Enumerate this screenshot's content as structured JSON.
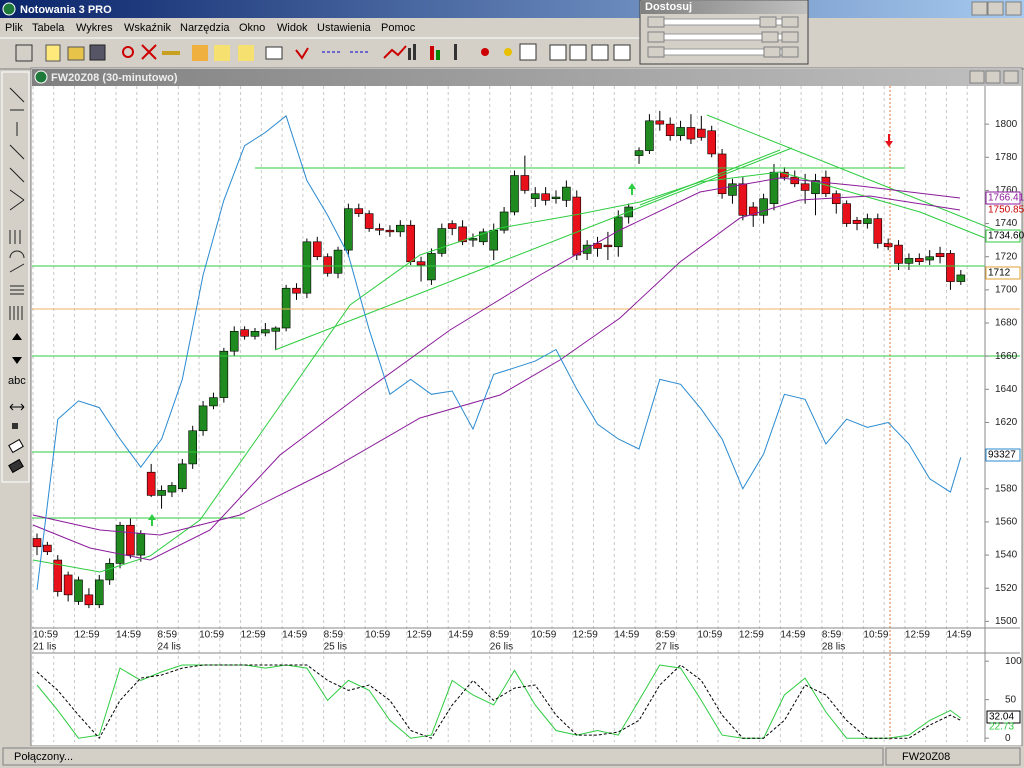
{
  "app_title": "Notowania 3 PRO",
  "menu": [
    "Plik",
    "Tabela",
    "Wykres",
    "Wskaźnik",
    "Narzędzia",
    "Okno",
    "Widok",
    "Ustawienia",
    "Pomoc"
  ],
  "panel": {
    "title": "Dostosuj"
  },
  "tool_label": "abc",
  "window": {
    "title": "FW20Z08 (30-minutowo)"
  },
  "chart": {
    "type": "candlestick",
    "up_color": "#1f8a1f",
    "down_color": "#e8101a",
    "open": [
      1550,
      1546,
      1537,
      1528,
      1512,
      1516,
      1510,
      1525,
      1535,
      1558,
      1540,
      1590,
      1576,
      1578,
      1580,
      1595,
      1615,
      1630,
      1635,
      1663,
      1676,
      1672,
      1674,
      1675,
      1677,
      1701,
      1698,
      1729,
      1720,
      1710,
      1724,
      1749,
      1746,
      1737,
      1736,
      1735,
      1739,
      1717,
      1706,
      1722,
      1740,
      1738,
      1730,
      1729,
      1724,
      1736,
      1747,
      1769,
      1755,
      1758,
      1755,
      1754,
      1756,
      1722,
      1728,
      1727,
      1726,
      1744,
      1781,
      1784,
      1802,
      1800,
      1793,
      1798,
      1797,
      1796,
      1782,
      1757,
      1764,
      1750,
      1745,
      1752,
      1771,
      1768,
      1764,
      1758,
      1768,
      1758,
      1752,
      1742,
      1740,
      1743,
      1728,
      1727,
      1716,
      1719,
      1718,
      1722,
      1722,
      1705
    ],
    "high": [
      1553,
      1548,
      1540,
      1530,
      1527,
      1520,
      1528,
      1538,
      1560,
      1562,
      1555,
      1595,
      1582,
      1584,
      1598,
      1618,
      1633,
      1638,
      1665,
      1678,
      1678,
      1677,
      1680,
      1678,
      1703,
      1704,
      1731,
      1732,
      1722,
      1726,
      1752,
      1752,
      1748,
      1740,
      1739,
      1742,
      1742,
      1720,
      1725,
      1740,
      1742,
      1742,
      1734,
      1737,
      1740,
      1750,
      1772,
      1781,
      1762,
      1762,
      1760,
      1766,
      1760,
      1730,
      1732,
      1735,
      1748,
      1752,
      1786,
      1806,
      1808,
      1804,
      1802,
      1806,
      1805,
      1799,
      1785,
      1767,
      1768,
      1753,
      1758,
      1776,
      1774,
      1772,
      1770,
      1770,
      1772,
      1760,
      1754,
      1744,
      1746,
      1746,
      1731,
      1730,
      1722,
      1722,
      1724,
      1726,
      1724,
      1712
    ],
    "low": [
      1540,
      1540,
      1515,
      1512,
      1510,
      1508,
      1508,
      1522,
      1532,
      1538,
      1536,
      1575,
      1568,
      1575,
      1578,
      1592,
      1612,
      1628,
      1632,
      1660,
      1670,
      1670,
      1672,
      1664,
      1675,
      1694,
      1695,
      1718,
      1708,
      1707,
      1720,
      1744,
      1735,
      1733,
      1732,
      1732,
      1715,
      1705,
      1703,
      1720,
      1733,
      1727,
      1726,
      1727,
      1718,
      1734,
      1745,
      1758,
      1750,
      1751,
      1752,
      1750,
      1718,
      1718,
      1720,
      1718,
      1720,
      1740,
      1776,
      1782,
      1796,
      1790,
      1790,
      1788,
      1790,
      1780,
      1755,
      1752,
      1742,
      1738,
      1740,
      1748,
      1766,
      1762,
      1752,
      1745,
      1756,
      1746,
      1738,
      1736,
      1737,
      1725,
      1724,
      1712,
      1712,
      1715,
      1715,
      1716,
      1700,
      1703
    ],
    "close": [
      1545,
      1542,
      1518,
      1516,
      1525,
      1510,
      1525,
      1535,
      1558,
      1540,
      1553,
      1576,
      1579,
      1582,
      1595,
      1615,
      1630,
      1635,
      1663,
      1675,
      1672,
      1675,
      1676,
      1677,
      1701,
      1698,
      1729,
      1720,
      1710,
      1724,
      1749,
      1746,
      1737,
      1736,
      1735,
      1739,
      1717,
      1715,
      1722,
      1737,
      1737,
      1729,
      1731,
      1735,
      1736,
      1747,
      1769,
      1760,
      1758,
      1754,
      1756,
      1762,
      1721,
      1727,
      1725,
      1726,
      1744,
      1750,
      1784,
      1802,
      1800,
      1793,
      1798,
      1791,
      1792,
      1782,
      1758,
      1764,
      1745,
      1745,
      1755,
      1771,
      1768,
      1764,
      1760,
      1766,
      1758,
      1752,
      1740,
      1740,
      1743,
      1728,
      1726,
      1716,
      1719,
      1717,
      1720,
      1720,
      1705,
      1709
    ],
    "ylim": [
      1496,
      1823
    ],
    "yticks": [
      1500,
      1520,
      1540,
      1560,
      1580,
      1600,
      1620,
      1640,
      1660,
      1680,
      1700,
      1720,
      1740,
      1760,
      1780,
      1800
    ],
    "time_labels": [
      "10:59",
      "12:59",
      "14:59",
      "8:59",
      "10:59",
      "12:59",
      "14:59",
      "8:59",
      "10:59",
      "12:59",
      "14:59",
      "8:59",
      "10:59",
      "12:59",
      "14:59",
      "8:59",
      "10:59",
      "12:59",
      "14:59",
      "8:59",
      "10:59",
      "12:59",
      "14:59"
    ],
    "date_labels": [
      "21 lis",
      null,
      null,
      "24 lis",
      null,
      null,
      null,
      "25 lis",
      null,
      null,
      null,
      "26 lis",
      null,
      null,
      null,
      "27 lis",
      null,
      null,
      null,
      "28 lis",
      null,
      null,
      null
    ],
    "line": {
      "color": "#2a8ad0",
      "x": [
        0,
        2,
        4,
        6,
        8,
        10,
        12,
        14,
        16,
        18,
        20,
        22,
        24,
        26,
        28,
        30,
        32,
        34,
        36,
        38,
        40,
        42,
        44,
        46,
        48,
        50,
        52,
        54,
        56,
        58,
        60,
        62,
        64,
        66,
        68,
        70,
        72,
        74,
        76,
        78,
        80,
        82,
        84,
        86,
        88,
        89
      ],
      "values": [
        1519,
        1622,
        1633,
        1629,
        1610,
        1593,
        1610,
        1646,
        1709,
        1754,
        1787,
        1795,
        1805,
        1766,
        1745,
        1721,
        1676,
        1637,
        1646,
        1637,
        1639,
        1616,
        1649,
        1653,
        1657,
        1664,
        1640,
        1619,
        1610,
        1604,
        1646,
        1643,
        1628,
        1610,
        1580,
        1601,
        1637,
        1634,
        1607,
        1622,
        1617,
        1620,
        1607,
        1586,
        1578,
        1599
      ]
    },
    "price_labels": [
      "1766.41",
      "1750.85",
      "1734.60",
      "1712",
      "93327"
    ]
  },
  "oscillator": {
    "ylim": [
      -5,
      108
    ],
    "yticks": [
      0,
      50,
      100
    ],
    "x": [
      0,
      2,
      4,
      6,
      8,
      10,
      12,
      14,
      16,
      18,
      20,
      22,
      24,
      26,
      28,
      30,
      32,
      34,
      36,
      38,
      40,
      42,
      44,
      46,
      48,
      50,
      52,
      54,
      56,
      58,
      60,
      62,
      64,
      66,
      68,
      70,
      72,
      74,
      76,
      78,
      80,
      82,
      84,
      86,
      88,
      89
    ],
    "series": [
      {
        "color": "#2ecc40",
        "dashed": false,
        "values": [
          69,
          36,
          0,
          4,
          91,
          75,
          86,
          95,
          95,
          95,
          95,
          91,
          95,
          91,
          49,
          75,
          62,
          23,
          0,
          4,
          75,
          56,
          43,
          88,
          43,
          10,
          4,
          10,
          4,
          49,
          95,
          91,
          49,
          4,
          0,
          0,
          56,
          78,
          34,
          0,
          0,
          0,
          4,
          23,
          36,
          26
        ]
      },
      {
        "color": "#000000",
        "dashed": true,
        "values": [
          86,
          62,
          30,
          0,
          49,
          78,
          82,
          91,
          95,
          95,
          95,
          95,
          95,
          95,
          75,
          62,
          69,
          49,
          10,
          0,
          43,
          75,
          49,
          65,
          69,
          30,
          4,
          4,
          8,
          23,
          69,
          95,
          75,
          30,
          0,
          0,
          23,
          69,
          56,
          23,
          0,
          0,
          0,
          17,
          30,
          23
        ]
      }
    ],
    "labels": [
      "32.04",
      "22.73"
    ]
  },
  "status": {
    "left": "Połączony...",
    "right": "FW20Z08"
  }
}
